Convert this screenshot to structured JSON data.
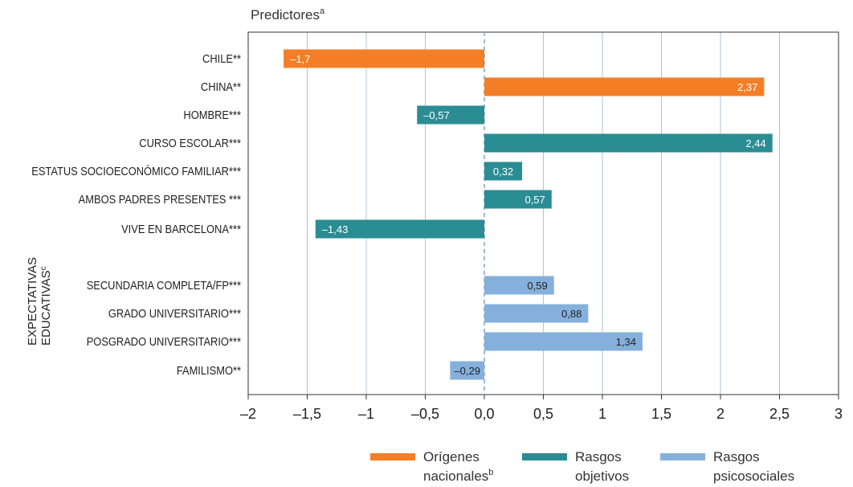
{
  "chart_data": {
    "type": "bar",
    "orientation": "horizontal",
    "title": "Predictores",
    "title_superscript": "a",
    "xlim": [
      -2,
      3
    ],
    "x_ticks": [
      "–2",
      "–1,5",
      "–1",
      "–0,5",
      "0,0",
      "0,5",
      "1",
      "1,5",
      "2",
      "2,5",
      "3"
    ],
    "grid": "vertical",
    "bars": [
      {
        "label": "CHILE**",
        "value": -1.7,
        "display": "–1,7",
        "group": "origenes"
      },
      {
        "label": "CHINA**",
        "value": 2.37,
        "display": "2,37",
        "group": "origenes"
      },
      {
        "label": "HOMBRE***",
        "value": -0.57,
        "display": "–0,57",
        "group": "objetivos"
      },
      {
        "label": "CURSO ESCOLAR***",
        "value": 2.44,
        "display": "2,44",
        "group": "objetivos"
      },
      {
        "label": "ESTATUS SOCIOECONÓMICO FAMILIAR***",
        "value": 0.32,
        "display": "0,32",
        "group": "objetivos"
      },
      {
        "label": "AMBOS PADRES PRESENTES ***",
        "value": 0.57,
        "display": "0,57",
        "group": "objetivos"
      },
      {
        "label": "VIVE EN BARCELONA***",
        "value": -1.43,
        "display": "–1,43",
        "group": "objetivos"
      },
      {
        "label": "SECUNDARIA COMPLETA/FP***",
        "value": 0.59,
        "display": "0,59",
        "group": "psicosociales"
      },
      {
        "label": "GRADO UNIVERSITARIO***",
        "value": 0.88,
        "display": "0,88",
        "group": "psicosociales"
      },
      {
        "label": "POSGRADO UNIVERSITARIO***",
        "value": 1.34,
        "display": "1,34",
        "group": "psicosociales"
      },
      {
        "label": "FAMILISMO**",
        "value": -0.29,
        "display": "–0,29",
        "group": "psicosociales"
      }
    ],
    "group_label": {
      "line1": "EXPECTATIVAS",
      "line2": "EDUCATIVAS",
      "superscript": "c"
    },
    "legend": {
      "placement": "bottom",
      "items": [
        {
          "key": "origenes",
          "line1": "Orígenes",
          "line2": "nacionales",
          "superscript": "b",
          "color": "#f47e26"
        },
        {
          "key": "objetivos",
          "line1": "Rasgos",
          "line2": "objetivos",
          "superscript": "",
          "color": "#2a8d93"
        },
        {
          "key": "psicosociales",
          "line1": "Rasgos",
          "line2": "psicosociales",
          "superscript": "",
          "color": "#86b0dc"
        }
      ]
    },
    "colors": {
      "origenes": "#f47e26",
      "objetivos": "#2a8d93",
      "psicosociales": "#86b0dc",
      "grid": "#a9c3de",
      "axis": "#333333",
      "zero_line": "#7fa3cc"
    }
  }
}
